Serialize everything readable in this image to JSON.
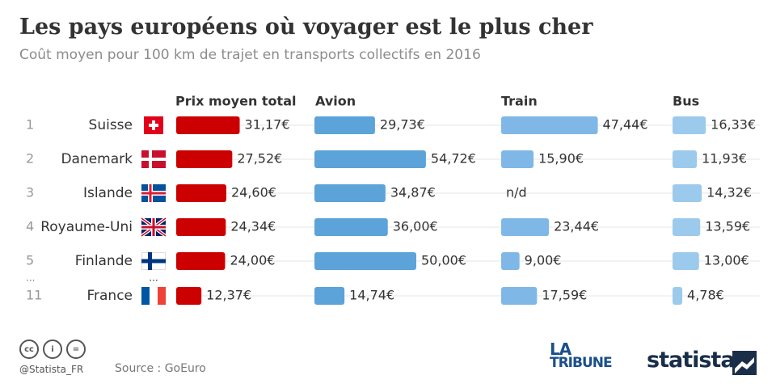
{
  "header": {
    "title": "Les pays européens où voyager est le plus cher",
    "subtitle": "Coût moyen pour 100 km de trajet en transports collectifs en 2016"
  },
  "chart_data": {
    "type": "bar",
    "title": "Les pays européens où voyager est le plus cher",
    "subtitle": "Coût moyen pour 100 km de trajet en transports collectifs en 2016",
    "unit": "€",
    "categories": [
      "Suisse",
      "Danemark",
      "Islande",
      "Royaume-Uni",
      "Finlande",
      "France"
    ],
    "ranks": [
      "1",
      "2",
      "3",
      "4",
      "5",
      "11"
    ],
    "ellipsis": "...",
    "series": [
      {
        "name": "Prix moyen total",
        "color": "#cc0000",
        "values": [
          31.17,
          27.52,
          24.6,
          24.34,
          24.0,
          12.37
        ],
        "labels": [
          "31,17€",
          "27,52€",
          "24,60€",
          "24,34€",
          "24,00€",
          "12,37€"
        ]
      },
      {
        "name": "Avion",
        "color": "#5ba3d9",
        "values": [
          29.73,
          54.72,
          34.87,
          36.0,
          50.0,
          14.74
        ],
        "labels": [
          "29,73€",
          "54,72€",
          "34,87€",
          "36,00€",
          "50,00€",
          "14,74€"
        ]
      },
      {
        "name": "Train",
        "color": "#7fb8e6",
        "values": [
          47.44,
          15.9,
          null,
          23.44,
          9.0,
          17.59
        ],
        "labels": [
          "47,44€",
          "15,90€",
          "n/d",
          "23,44€",
          "9,00€",
          "17,59€"
        ]
      },
      {
        "name": "Bus",
        "color": "#9ccaed",
        "values": [
          16.33,
          11.93,
          14.32,
          13.59,
          13.0,
          4.78
        ],
        "labels": [
          "16,33€",
          "11,93€",
          "14,32€",
          "13,59€",
          "13,00€",
          "4,78€"
        ]
      }
    ]
  },
  "footer": {
    "handle": "@Statista_FR",
    "source": "Source : GoEuro",
    "cc_icons": [
      "cc",
      "i",
      "="
    ],
    "logo_latribune_line1": "LA",
    "logo_latribune_line2": "TRIBUNE",
    "logo_statista": "statista"
  }
}
